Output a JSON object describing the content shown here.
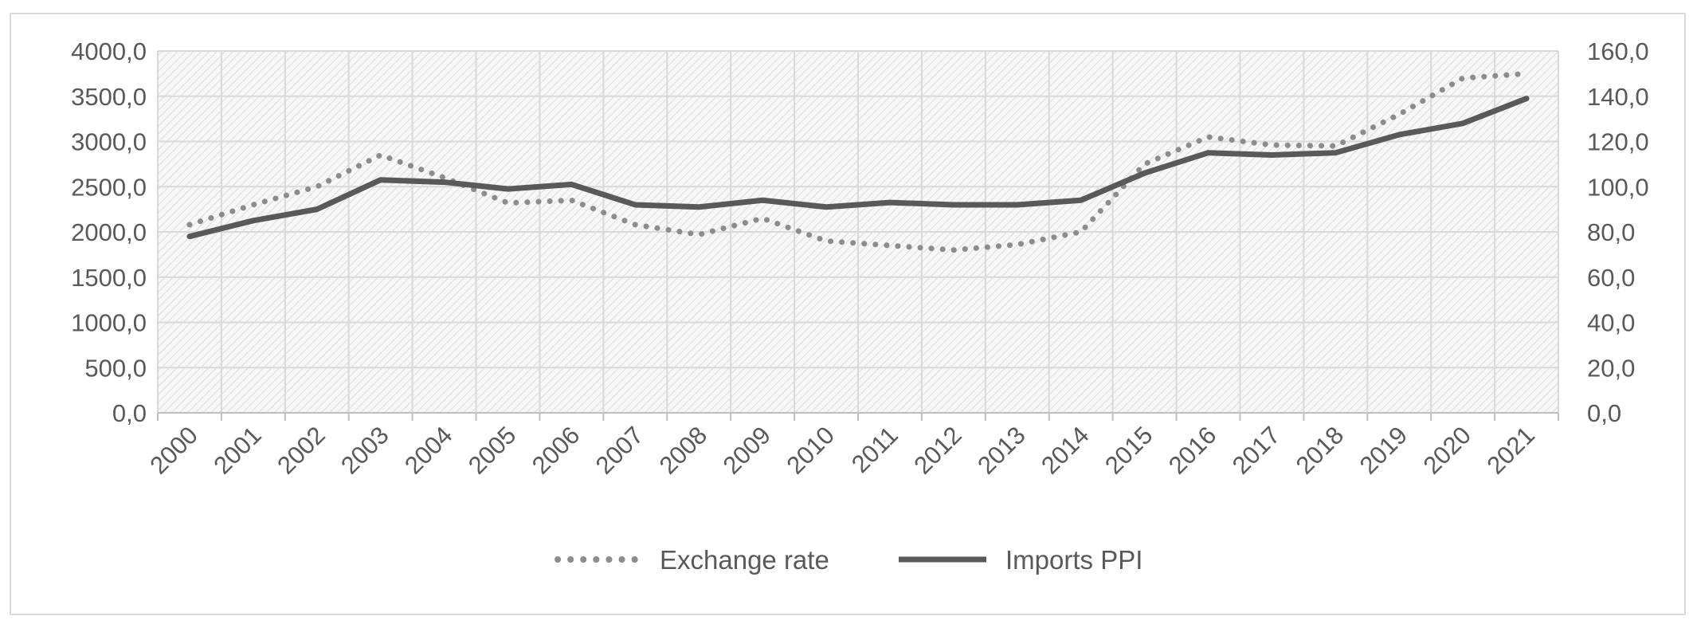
{
  "chart_data": {
    "type": "line",
    "title": "",
    "categories": [
      "2000",
      "2001",
      "2002",
      "2003",
      "2004",
      "2005",
      "2006",
      "2007",
      "2008",
      "2009",
      "2010",
      "2011",
      "2012",
      "2013",
      "2014",
      "2015",
      "2016",
      "2017",
      "2018",
      "2019",
      "2020",
      "2021"
    ],
    "series": [
      {
        "name": "Exchange rate",
        "axis": "left",
        "style": "dotted",
        "color": "#8c8c8c",
        "values": [
          2080,
          2300,
          2500,
          2850,
          2600,
          2320,
          2350,
          2080,
          1970,
          2150,
          1900,
          1850,
          1800,
          1860,
          2000,
          2750,
          3050,
          2960,
          2950,
          3300,
          3700,
          3750
        ]
      },
      {
        "name": "Imports PPI",
        "axis": "right",
        "style": "solid",
        "color": "#595959",
        "values": [
          78,
          85,
          90,
          103,
          102,
          99,
          101,
          92,
          91,
          94,
          91,
          93,
          92,
          92,
          94,
          106,
          115,
          114,
          115,
          123,
          128,
          139
        ]
      }
    ],
    "y_left": {
      "min": 0,
      "max": 4000,
      "step": 500,
      "tick_labels": [
        "0,0",
        "500,0",
        "1000,0",
        "1500,0",
        "2000,0",
        "2500,0",
        "3000,0",
        "3500,0",
        "4000,0"
      ]
    },
    "y_right": {
      "min": 0,
      "max": 160,
      "step": 20,
      "tick_labels": [
        "0,0",
        "20,0",
        "40,0",
        "60,0",
        "80,0",
        "100,0",
        "120,0",
        "140,0",
        "160,0"
      ]
    },
    "grid": true,
    "legend": "bottom-center",
    "xlabel": "",
    "ylabel": ""
  }
}
